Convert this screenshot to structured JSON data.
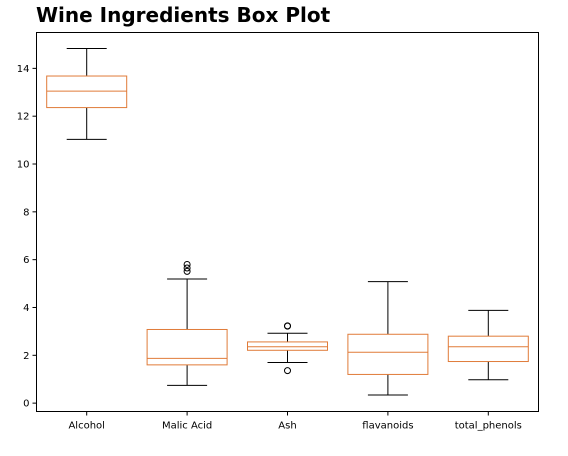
{
  "chart_data": {
    "type": "box",
    "title": "Wine Ingredients Box Plot",
    "xlabel": "",
    "ylabel": "",
    "ylim": [
      -0.35,
      15.5
    ],
    "yticks": [
      0,
      2,
      4,
      6,
      8,
      10,
      12,
      14
    ],
    "grid": false,
    "categories": [
      "Alcohol",
      "Malic Acid",
      "Ash",
      "flavanoids",
      "total_phenols"
    ],
    "boxes": [
      {
        "name": "Alcohol",
        "whisker_low": 11.03,
        "q1": 12.36,
        "median": 13.05,
        "q3": 13.68,
        "whisker_high": 14.83,
        "outliers": []
      },
      {
        "name": "Malic Acid",
        "whisker_low": 0.74,
        "q1": 1.6,
        "median": 1.87,
        "q3": 3.08,
        "whisker_high": 5.19,
        "outliers": [
          5.51,
          5.65,
          5.8
        ]
      },
      {
        "name": "Ash",
        "whisker_low": 1.7,
        "q1": 2.21,
        "median": 2.36,
        "q3": 2.56,
        "whisker_high": 2.92,
        "outliers": [
          1.36,
          3.22,
          3.23
        ]
      },
      {
        "name": "flavanoids",
        "whisker_low": 0.34,
        "q1": 1.2,
        "median": 2.13,
        "q3": 2.88,
        "whisker_high": 5.08,
        "outliers": []
      },
      {
        "name": "total_phenols",
        "whisker_low": 0.98,
        "q1": 1.74,
        "median": 2.36,
        "q3": 2.8,
        "whisker_high": 3.88,
        "outliers": []
      }
    ],
    "colors": {
      "box": "#e07b39",
      "median": "#e07b39",
      "whisker": "#000000",
      "axes": "#000000"
    }
  }
}
